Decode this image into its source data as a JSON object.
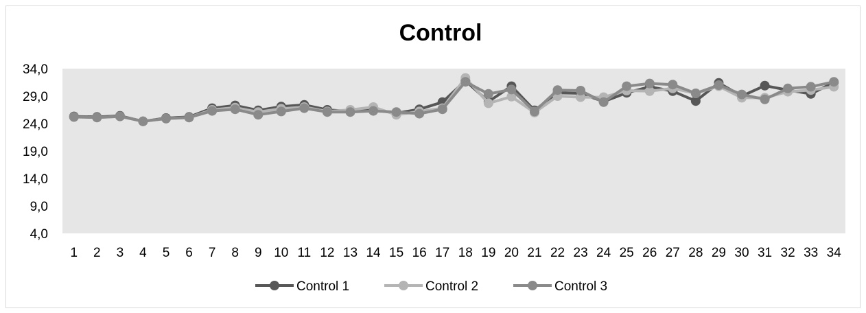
{
  "chart_data": {
    "type": "line",
    "title": "Control",
    "xlabel": "",
    "ylabel": "",
    "categories": [
      "1",
      "2",
      "3",
      "4",
      "5",
      "6",
      "7",
      "8",
      "9",
      "10",
      "11",
      "12",
      "13",
      "14",
      "15",
      "16",
      "17",
      "18",
      "19",
      "20",
      "21",
      "22",
      "23",
      "24",
      "25",
      "26",
      "27",
      "28",
      "29",
      "30",
      "31",
      "32",
      "33",
      "34"
    ],
    "yticks": [
      "4,0",
      "9,0",
      "14,0",
      "19,0",
      "24,0",
      "29,0",
      "34,0"
    ],
    "ylim": [
      4,
      34
    ],
    "grid": false,
    "legend_position": "bottom",
    "plot_background": "#e6e6e6",
    "series": [
      {
        "name": "Control 1",
        "color": "#575757",
        "values": [
          25.3,
          25.2,
          25.4,
          24.4,
          25.0,
          25.2,
          26.8,
          27.3,
          26.4,
          27.1,
          27.4,
          26.5,
          26.2,
          26.5,
          25.9,
          26.6,
          27.9,
          31.8,
          28.0,
          30.8,
          26.4,
          29.6,
          29.5,
          28.0,
          29.6,
          30.7,
          29.9,
          28.1,
          31.4,
          29.0,
          30.9,
          30.1,
          29.4,
          31.5
        ]
      },
      {
        "name": "Control 2",
        "color": "#b4b4b4",
        "values": [
          25.2,
          25.1,
          25.3,
          24.4,
          24.9,
          25.1,
          26.5,
          26.9,
          26.1,
          26.7,
          27.0,
          26.2,
          26.5,
          27.0,
          25.6,
          26.2,
          26.8,
          32.3,
          27.7,
          28.9,
          26.0,
          29.0,
          28.8,
          28.8,
          30.0,
          29.9,
          30.4,
          29.5,
          30.8,
          28.7,
          28.7,
          29.8,
          30.1,
          30.7
        ]
      },
      {
        "name": "Control 3",
        "color": "#8a8a8a",
        "values": [
          25.2,
          25.1,
          25.3,
          24.4,
          24.9,
          25.1,
          26.3,
          26.6,
          25.6,
          26.2,
          26.8,
          26.1,
          26.1,
          26.3,
          26.1,
          25.8,
          26.6,
          31.6,
          29.4,
          30.2,
          26.2,
          30.1,
          30.0,
          27.9,
          30.8,
          31.3,
          31.1,
          29.5,
          31.0,
          29.3,
          28.4,
          30.4,
          30.7,
          31.6
        ]
      }
    ]
  }
}
